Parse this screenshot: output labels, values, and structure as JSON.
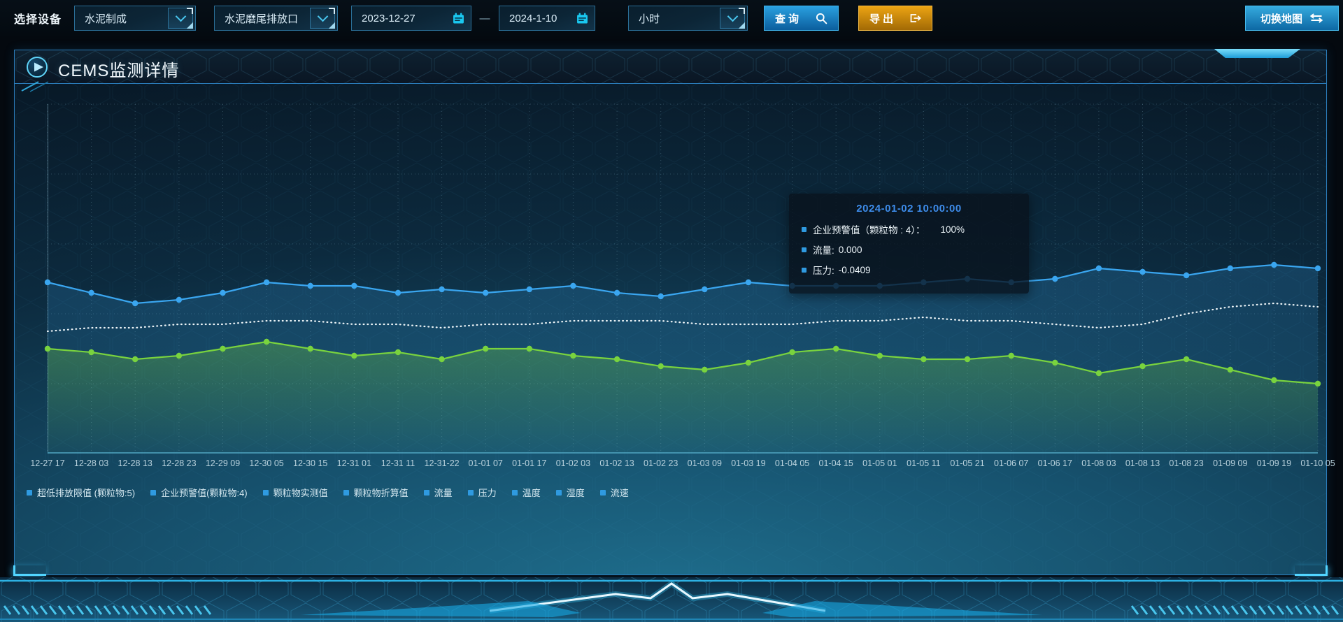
{
  "toolbar": {
    "device_label": "选择设备",
    "selects": [
      {
        "value": "水泥制成"
      },
      {
        "value": "水泥磨尾排放口"
      }
    ],
    "date_start": "2023-12-27",
    "date_separator": "—",
    "date_end": "2024-1-10",
    "interval_select": {
      "value": "小时"
    },
    "query_label": "查询",
    "export_label": "导出",
    "switch_map_label": "切换地图",
    "colors": {
      "query_button": "#1286c9",
      "export_button": "#cf8e0e",
      "switch_map_button": "#1b8ec9"
    }
  },
  "panel": {
    "title": "CEMS监测详情",
    "border_color": "#2b7cba"
  },
  "tooltip": {
    "title": "2024-01-02 10:00:00",
    "title_color": "#3d8be8",
    "marker_color": "#2f9ae0",
    "rows": [
      {
        "label": "企业预警值（颗粒物 : 4）：",
        "value": "100%"
      },
      {
        "label": "流量:",
        "value": "0.000"
      },
      {
        "label": "压力:",
        "value": "-0.0409"
      }
    ]
  },
  "legend": {
    "marker_color": "#2f9ae0",
    "items": [
      "超低排放限值 (颗粒物:5)",
      "企业预警值(颗粒物:4)",
      "颗粒物实测值",
      "颗粒物折算值",
      "流量",
      "压力",
      "温度",
      "湿度",
      "流速"
    ]
  },
  "chart_data": {
    "type": "line",
    "title": "",
    "xlabel": "",
    "ylabel": "",
    "y_axis_visible": false,
    "grid": true,
    "legend_position": "bottom",
    "note": "y-axis has no visible tick labels; series values are estimated as percent of plot height (0 = bottom axis, 100 = top gridline)",
    "x": [
      "12-27 17",
      "12-28 03",
      "12-28 13",
      "12-28 23",
      "12-29 09",
      "12-30 05",
      "12-30 15",
      "12-31 01",
      "12-31 11",
      "12-31-22",
      "01-01 07",
      "01-01 17",
      "01-02 03",
      "01-02 13",
      "01-02 23",
      "01-03 09",
      "01-03 19",
      "01-04 05",
      "01-04 15",
      "01-05 01",
      "01-05 11",
      "01-05 21",
      "01-06 07",
      "01-06 17",
      "01-08 03",
      "01-08 13",
      "01-08 23",
      "01-09 09",
      "01-09 19",
      "01-10 05"
    ],
    "series": [
      {
        "name": "企业预警值(颗粒物:4)",
        "color": "#3aa6f0",
        "line_style": "solid",
        "markers": true,
        "area_fill": true,
        "values": [
          49,
          46,
          43,
          44,
          46,
          49,
          48,
          48,
          46,
          47,
          46,
          47,
          48,
          46,
          45,
          47,
          49,
          48,
          48,
          48,
          49,
          50,
          49,
          50,
          53,
          52,
          51,
          53,
          54,
          53
        ]
      },
      {
        "name": "流量",
        "color": "#eef5f8",
        "line_style": "dotted",
        "markers": false,
        "area_fill": false,
        "values": [
          35,
          36,
          36,
          37,
          37,
          38,
          38,
          37,
          37,
          36,
          37,
          37,
          38,
          38,
          38,
          37,
          37,
          37,
          38,
          38,
          39,
          38,
          38,
          37,
          36,
          37,
          40,
          42,
          43,
          42
        ]
      },
      {
        "name": "压力",
        "color": "#79d33e",
        "line_style": "solid",
        "markers": true,
        "area_fill": true,
        "values": [
          30,
          29,
          27,
          28,
          30,
          32,
          30,
          28,
          29,
          27,
          30,
          30,
          28,
          27,
          25,
          24,
          26,
          29,
          30,
          28,
          27,
          27,
          28,
          26,
          23,
          25,
          27,
          24,
          21,
          20
        ]
      }
    ]
  }
}
